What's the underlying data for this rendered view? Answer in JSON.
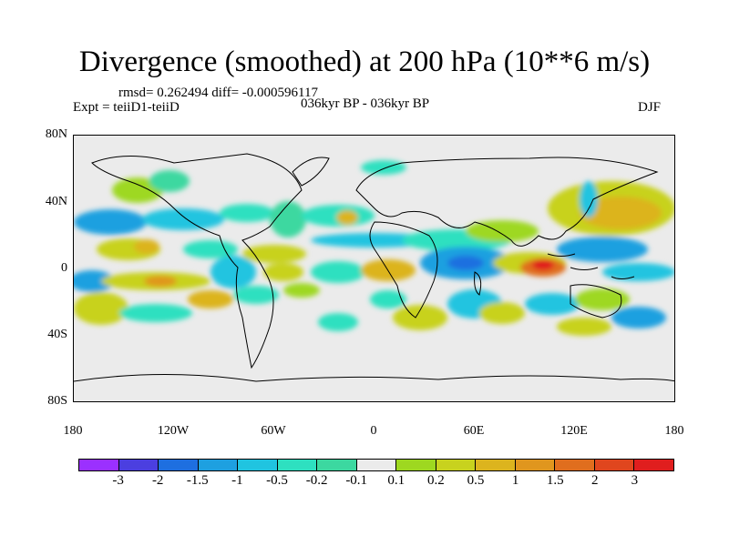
{
  "title": "Divergence (smoothed) at 200 hPa (10**6 m/s)",
  "stats": "rmsd= 0.262494 diff= -0.000596117",
  "experiment": "Expt = teiiD1-teiiD",
  "period": "036kyr BP - 036kyr BP",
  "season": "DJF",
  "y_axis_labels": [
    "80N",
    "40N",
    "0",
    "40S",
    "80S"
  ],
  "x_axis_labels": [
    "180",
    "120W",
    "60W",
    "0",
    "60E",
    "120E",
    "180"
  ],
  "colorbar": {
    "colors": [
      "#9b30ff",
      "#4b3fe0",
      "#1e6fe0",
      "#1ea0e0",
      "#20c4e0",
      "#2ee0c0",
      "#3cd8a0",
      "#ebebeb",
      "#9ed820",
      "#c8d21e",
      "#dcb41e",
      "#e0961e",
      "#e06e1e",
      "#e0461e",
      "#e01e1e"
    ],
    "labels": [
      "-3",
      "-2",
      "-1.5",
      "-1",
      "-0.5",
      "-0.2",
      "-0.1",
      "0.1",
      "0.2",
      "0.5",
      "1",
      "1.5",
      "2",
      "3"
    ]
  }
}
